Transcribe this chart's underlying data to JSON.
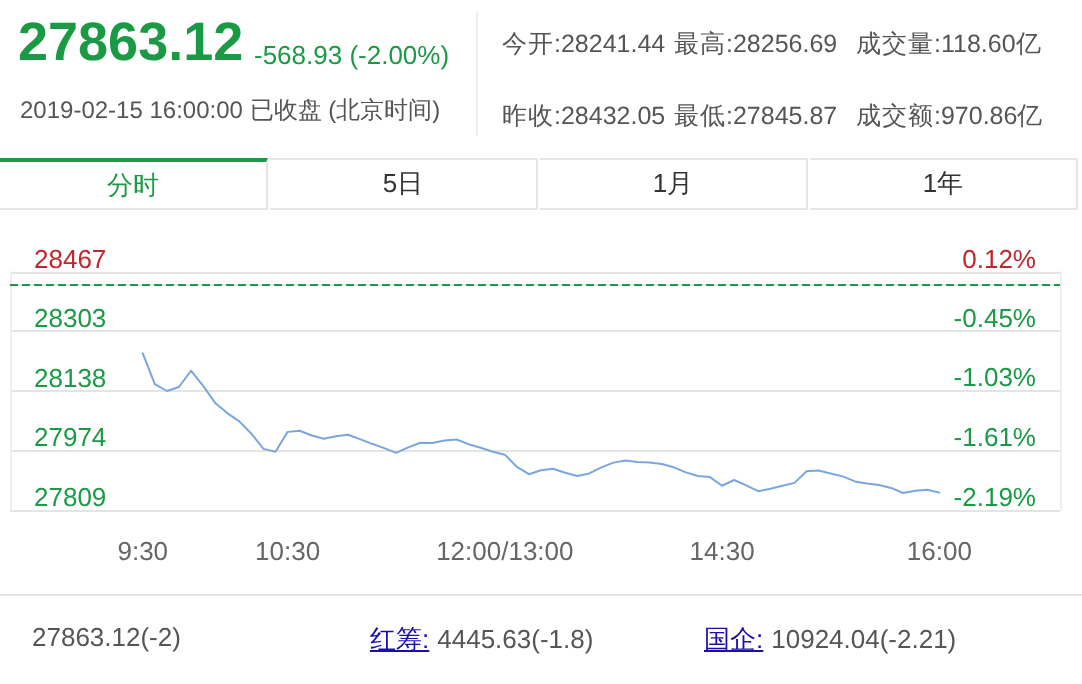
{
  "chart_data": {
    "type": "line",
    "title": "27863.12",
    "subtitle": "-568.93 (-2.00%)",
    "annotations": [
      "2019-02-15 16:00:00 已收盘 (北京时间)",
      "今开:28241.44",
      "最高:28256.69",
      "成交量:118.60亿",
      "昨收:28432.05",
      "最低:27845.87",
      "成交额:970.86亿",
      "分时",
      "5日",
      "1月",
      "1年",
      "27863.12(-2)",
      "红筹:",
      "4445.63(-1.8)",
      "国企:",
      "10924.04(-2.21)"
    ],
    "categories": [
      null,
      null,
      null,
      null,
      null,
      null,
      null,
      null,
      null,
      null,
      null,
      "9:30",
      null,
      null,
      null,
      null,
      null,
      null,
      null,
      null,
      null,
      null,
      null,
      "10:30",
      null,
      null,
      null,
      null,
      null,
      null,
      null,
      null,
      null,
      null,
      null,
      null,
      null,
      null,
      null,
      null,
      null,
      "12:00/13:00",
      null,
      null,
      null,
      null,
      null,
      null,
      null,
      null,
      null,
      null,
      null,
      null,
      null,
      null,
      null,
      null,
      null,
      "14:30",
      null,
      null,
      null,
      null,
      null,
      null,
      null,
      null,
      null,
      null,
      null,
      null,
      null,
      null,
      null,
      null,
      null,
      "16:00",
      null,
      null,
      null,
      null,
      null,
      null,
      null,
      null,
      null,
      null
    ],
    "series": [
      {
        "color": "#7aa6e0",
        "values": [
          null,
          null,
          null,
          null,
          null,
          null,
          null,
          null,
          null,
          null,
          null,
          28242,
          28157,
          28138,
          28149,
          28194,
          28152,
          28105,
          28077,
          28054,
          28020,
          27978,
          27970,
          28025,
          28028,
          28015,
          28006,
          28013,
          28017,
          28005,
          27992,
          27980,
          27967,
          27982,
          27995,
          27994,
          28001,
          28004,
          27991,
          27981,
          27970,
          27962,
          27928,
          27908,
          27919,
          27923,
          27912,
          27903,
          27910,
          27927,
          27940,
          27946,
          27942,
          27940,
          27936,
          27927,
          27913,
          27903,
          27900,
          27876,
          27892,
          27877,
          27861,
          27868,
          27876,
          27884,
          27916,
          27918,
          27910,
          27902,
          27888,
          27882,
          27878,
          27870,
          27856,
          27862,
          27865,
          27857,
          null,
          null,
          null,
          null,
          null,
          null,
          null,
          null,
          null,
          null
        ]
      }
    ],
    "ylim": [
      27809,
      28467
    ],
    "yticks": [
      27809,
      27974,
      28138,
      28303,
      28467
    ],
    "y2lim": [
      -2.19,
      0.12
    ],
    "y2ticks": [
      {
        "value": -2.19,
        "label": "-2.19%"
      },
      {
        "value": -1.61,
        "label": "-1.61%"
      },
      {
        "value": -1.03,
        "label": "-1.03%"
      },
      {
        "value": -0.45,
        "label": "-0.45%"
      },
      {
        "value": 0.12,
        "label": "0.12%"
      }
    ],
    "ref_lines": [
      {
        "axis": "y",
        "value": 28432.05,
        "color": "#1a9a45",
        "line_style": "dashed"
      }
    ],
    "grid": "y",
    "marker": "none",
    "line_style": "solid"
  }
}
